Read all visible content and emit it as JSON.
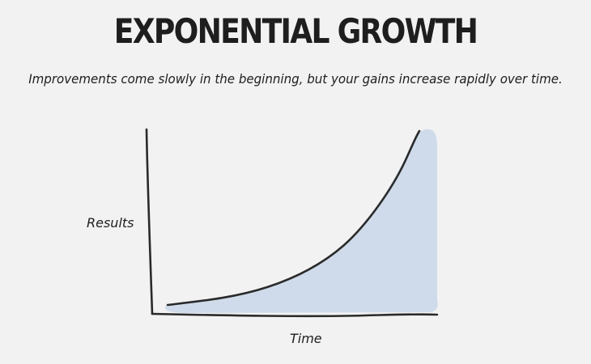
{
  "header": {
    "title": "EXPONENTIAL GROWTH",
    "subtitle": "Improvements come slowly in the beginning, but your gains increase rapidly over time."
  },
  "diagram": {
    "y_axis_label": "Results",
    "x_axis_label": "Time",
    "curve_type": "exponential",
    "fill_color": "#cfdbea",
    "line_color": "#2a2a2a"
  }
}
